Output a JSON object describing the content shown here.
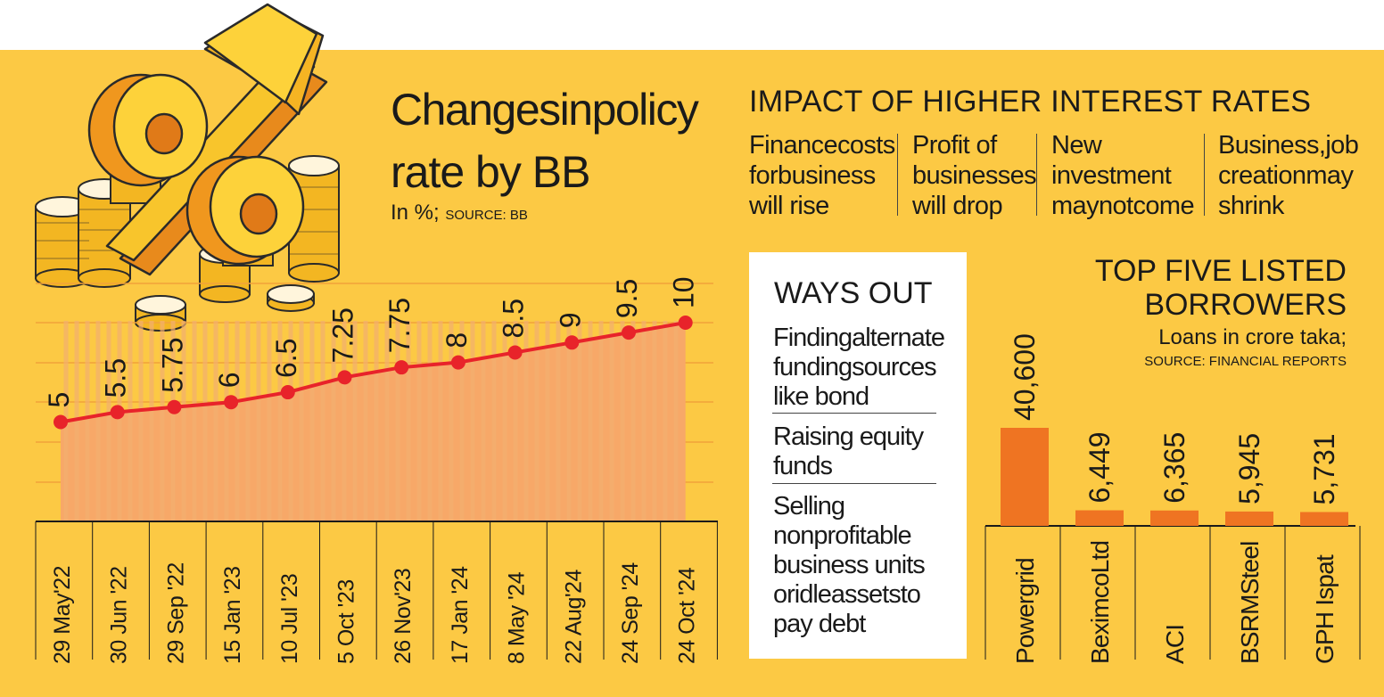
{
  "colors": {
    "background": "#fcc944",
    "line": "#e8232a",
    "area": "#f7a868",
    "bar": "#ef7422",
    "card": "#ffffff"
  },
  "policy": {
    "title_line1": "Changesinpolicy",
    "title_line2": "rate by BB",
    "subtitle_main": "In %;",
    "subtitle_source": "SOURCE: BB"
  },
  "impact": {
    "title": "IMPACT OF HIGHER INTEREST RATES",
    "items": [
      [
        "Financecosts",
        "forbusiness",
        "will rise"
      ],
      [
        "Profit of",
        "businesses",
        "will drop"
      ],
      [
        "New",
        "investment",
        "maynotcome"
      ],
      [
        "Business,job",
        "creationmay",
        "shrink"
      ]
    ]
  },
  "ways_out": {
    "title": "WAYS OUT",
    "items": [
      [
        "Findingalternate",
        "fundingsources",
        "like bond"
      ],
      [
        "Raising equity",
        "funds"
      ],
      [
        "Selling",
        "nonprofitable",
        "business units",
        "oridleassetsto",
        "pay debt"
      ]
    ]
  },
  "borrowers": {
    "title_line1": "TOP FIVE LISTED",
    "title_line2": "BORROWERS",
    "subtitle": "Loans in crore taka;",
    "source": "SOURCE: FINANCIAL REPORTS"
  },
  "chart_data": [
    {
      "type": "line",
      "title": "Changesinpolicy rate by BB",
      "ylabel": "In %",
      "categories": [
        "29 May'22",
        "30 Jun '22",
        "29 Sep '22",
        "15 Jan '23",
        "10 Jul '23",
        "5 Oct '23",
        "26 Nov'23",
        "17 Jan '24",
        "8 May '24",
        "22 Aug'24",
        "24 Sep '24",
        "24 Oct '24"
      ],
      "values": [
        5,
        5.5,
        5.75,
        6,
        6.5,
        7.25,
        7.75,
        8,
        8.5,
        9,
        9.5,
        10
      ],
      "labels": [
        "5",
        "5.5",
        "5.75",
        "6",
        "6.5",
        "7.25",
        "7.75",
        "8",
        "8.5",
        "9",
        "9.5",
        "10"
      ],
      "ylim": [
        0,
        10
      ],
      "grid": true
    },
    {
      "type": "bar",
      "title": "TOP FIVE LISTED BORROWERS",
      "ylabel": "Loans in crore taka",
      "categories": [
        "Powergrid",
        "BeximcoLtd",
        "ACI",
        "BSRMSteel",
        "GPH Ispat"
      ],
      "values": [
        40600,
        6449,
        6365,
        5945,
        5731
      ],
      "labels": [
        "40,600",
        "6,449",
        "6,365",
        "5,945",
        "5,731"
      ],
      "ylim": [
        0,
        40600
      ]
    }
  ]
}
